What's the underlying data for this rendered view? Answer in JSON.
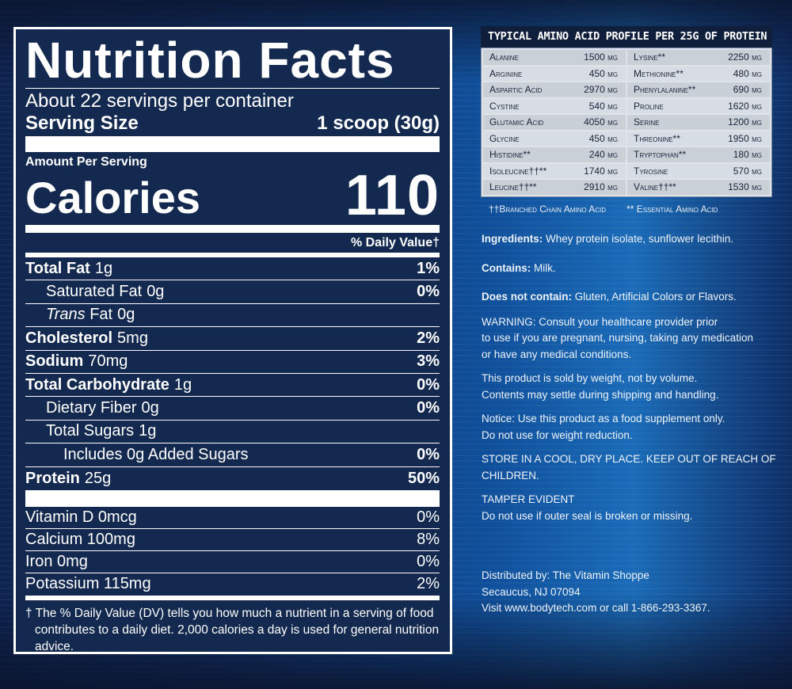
{
  "nutrition": {
    "title": "Nutrition Facts",
    "servings": "About 22 servings per container",
    "serving_size_label": "Serving Size",
    "serving_size_value": "1 scoop (30g)",
    "amount_per_serving": "Amount Per Serving",
    "calories_label": "Calories",
    "calories_value": "110",
    "dv_header": "% Daily Value†",
    "rows": [
      {
        "name": "Total Fat",
        "amount": "1g",
        "dv": "1%"
      },
      {
        "name": "Saturated Fat",
        "amount": "0g",
        "dv": "0%"
      },
      {
        "name_italic": "Trans",
        "name": "Fat",
        "amount": "0g",
        "dv": ""
      },
      {
        "name": "Cholesterol",
        "amount": "5mg",
        "dv": "2%"
      },
      {
        "name": "Sodium",
        "amount": "70mg",
        "dv": "3%"
      },
      {
        "name": "Total Carbohydrate",
        "amount": "1g",
        "dv": "0%"
      },
      {
        "name": "Dietary Fiber",
        "amount": "0g",
        "dv": "0%"
      },
      {
        "name": "Total Sugars",
        "amount": "1g",
        "dv": ""
      },
      {
        "name": "Includes 0g Added Sugars",
        "amount": "",
        "dv": "0%"
      },
      {
        "name": "Protein",
        "amount": "25g",
        "dv": "50%"
      }
    ],
    "vitamins": [
      {
        "name": "Vitamin D 0mcg",
        "dv": "0%"
      },
      {
        "name": "Calcium 100mg",
        "dv": "8%"
      },
      {
        "name": "Iron 0mg",
        "dv": "0%"
      },
      {
        "name": "Potassium 115mg",
        "dv": "2%"
      }
    ],
    "footnote": "† The % Daily Value (DV) tells you how much a nutrient in a serving of food contributes to a daily diet. 2,000 calories a day is used for general nutrition advice."
  },
  "amino": {
    "title": "TYPICAL AMINO ACID PROFILE PER 25G OF PROTEIN",
    "rows": [
      [
        {
          "name": "Alanine",
          "value": "1500 mg"
        },
        {
          "name": "Lysine**",
          "value": "2250 mg"
        }
      ],
      [
        {
          "name": "Arginine",
          "value": "450 mg"
        },
        {
          "name": "Methionine**",
          "value": "480 mg"
        }
      ],
      [
        {
          "name": "Aspartic Acid",
          "value": "2970 mg"
        },
        {
          "name": "Phenylalanine**",
          "value": "690 mg"
        }
      ],
      [
        {
          "name": "Cystine",
          "value": "540 mg"
        },
        {
          "name": "Proline",
          "value": "1620 mg"
        }
      ],
      [
        {
          "name": "Glutamic Acid",
          "value": "4050 mg"
        },
        {
          "name": "Serine",
          "value": "1200 mg"
        }
      ],
      [
        {
          "name": "Glycine",
          "value": "450 mg"
        },
        {
          "name": "Threonine**",
          "value": "1950 mg"
        }
      ],
      [
        {
          "name": "Histidine**",
          "value": "240 mg"
        },
        {
          "name": "Tryptophan**",
          "value": "180 mg"
        }
      ],
      [
        {
          "name": "Isoleucine††**",
          "value": "1740 mg"
        },
        {
          "name": "Tyrosine",
          "value": "570 mg"
        }
      ],
      [
        {
          "name": "Leucine††**",
          "value": "2910 mg"
        },
        {
          "name": "Valine††**",
          "value": "1530 mg"
        }
      ]
    ],
    "legend_bcaa": "††Branched Chain Amino Acid",
    "legend_essential": "** Essential Amino Acid"
  },
  "info": {
    "ingredients_label": "Ingredients:",
    "ingredients": " Whey protein isolate, sunflower lecithin.",
    "contains_label": "Contains:",
    "contains": " Milk.",
    "not_contain_label": "Does not contain:",
    "not_contain": " Gluten, Artificial Colors or Flavors.",
    "warning_1": "WARNING: Consult your healthcare provider prior",
    "warning_2": "to use if you are pregnant, nursing, taking any medication",
    "warning_3": "or have any medical conditions.",
    "weight_1": "This product is sold by weight, not by volume.",
    "weight_2": "Contents may settle during shipping and handling.",
    "notice_1": "Notice: Use this product as a food supplement only.",
    "notice_2": "Do not use for weight reduction.",
    "store_1": "STORE IN A COOL, DRY PLACE. KEEP OUT OF REACH OF",
    "store_2": "CHILDREN.",
    "tamper_1": "TAMPER EVIDENT",
    "tamper_2": "Do not use if outer seal is broken or missing.",
    "dist_1": "Distributed by: The Vitamin Shoppe",
    "dist_2": "Secaucus, NJ 07094",
    "dist_3": "Visit www.bodytech.com or call 1-866-293-3367."
  }
}
